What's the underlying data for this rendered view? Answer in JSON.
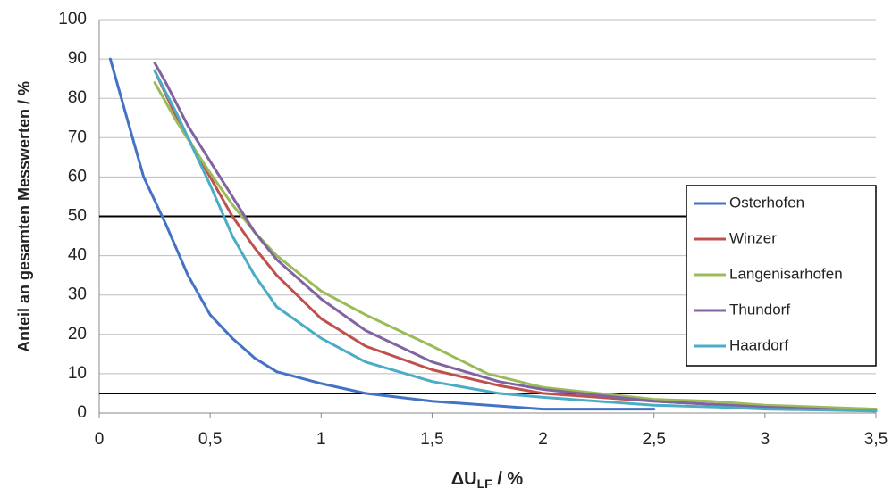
{
  "chart_data": {
    "type": "line",
    "y_label": "Anteil an gesamten Messwerten / %",
    "x_label": [
      "ΔU",
      "LF",
      " / %"
    ],
    "xlim": [
      0,
      3.5
    ],
    "xticks": [
      0,
      {
        "value": 0.5,
        "label": "0,5"
      },
      1,
      {
        "value": 1.5,
        "label": "1,5"
      },
      2,
      {
        "value": 2.5,
        "label": "2,5"
      },
      3,
      {
        "value": 3.5,
        "label": "3,5"
      }
    ],
    "ylim": [
      0,
      100
    ],
    "yticks": [
      0,
      10,
      20,
      30,
      40,
      50,
      60,
      70,
      80,
      90,
      100
    ],
    "grid": true,
    "reference_lines": [
      50,
      5
    ],
    "legend": "right",
    "series": [
      {
        "name": "Osterhofen",
        "color": "#4472c4",
        "x": [
          0.05,
          0.1,
          0.15,
          0.2,
          0.3,
          0.4,
          0.5,
          0.6,
          0.7,
          0.8,
          1.0,
          1.2,
          1.5,
          2.0,
          2.5
        ],
        "values": [
          90,
          80,
          70,
          60,
          48,
          35,
          25,
          19,
          14,
          10.5,
          7.5,
          5,
          3,
          1,
          1
        ]
      },
      {
        "name": "Winzer",
        "color": "#c0504d",
        "x": [
          0.25,
          0.35,
          0.5,
          0.6,
          0.7,
          0.8,
          1.0,
          1.2,
          1.5,
          1.8,
          2.0,
          2.5,
          3.0,
          3.5
        ],
        "values": [
          87,
          75,
          60,
          50,
          42,
          35,
          24,
          17,
          11,
          7,
          5,
          3,
          1.5,
          1
        ]
      },
      {
        "name": "Langenisarhofen",
        "color": "#9bbb59",
        "x": [
          0.25,
          0.35,
          0.5,
          0.6,
          0.7,
          0.8,
          1.0,
          1.2,
          1.5,
          1.75,
          2.0,
          2.5,
          2.75,
          3.0,
          3.5
        ],
        "values": [
          84,
          74,
          61,
          53,
          46,
          40,
          31,
          25,
          17,
          10,
          6.5,
          3.5,
          3,
          2,
          1
        ]
      },
      {
        "name": "Thundorf",
        "color": "#8064a2",
        "x": [
          0.25,
          0.3,
          0.4,
          0.5,
          0.6,
          0.7,
          0.8,
          1.0,
          1.2,
          1.5,
          1.8,
          2.0,
          2.5,
          3.0,
          3.5
        ],
        "values": [
          89,
          84,
          73,
          64,
          55,
          46,
          39,
          29,
          21,
          13,
          8,
          6,
          3,
          1.5,
          0.5
        ]
      },
      {
        "name": "Haardorf",
        "color": "#4bacc6",
        "x": [
          0.25,
          0.35,
          0.5,
          0.6,
          0.7,
          0.8,
          1.0,
          1.2,
          1.5,
          1.8,
          2.0,
          2.5,
          2.8,
          3.0,
          3.5
        ],
        "values": [
          87,
          76,
          58,
          45,
          35,
          27,
          19,
          13,
          8,
          5,
          4,
          2,
          1.5,
          1,
          0.5
        ]
      }
    ]
  }
}
